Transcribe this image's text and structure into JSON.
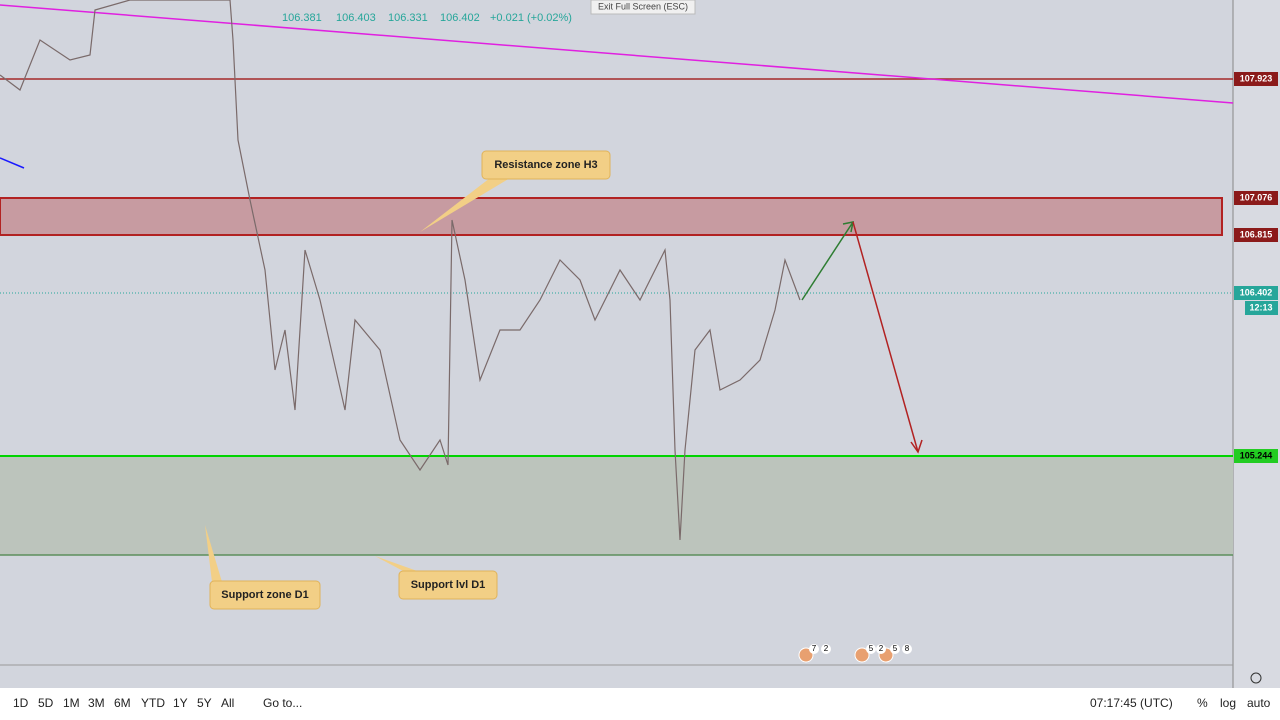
{
  "header": {
    "ohlc": [
      "106.381",
      "106.403",
      "106.331",
      "106.402"
    ],
    "change": "+0.021 (+0.02%)",
    "exit_button": "Exit Full Screen (ESC)"
  },
  "price_labels": {
    "line_top": "107.923",
    "resistance_top": "107.076",
    "resistance_bottom": "106.815",
    "last_price": "106.402",
    "countdown": "12:13",
    "support": "105.244"
  },
  "annotations": {
    "resistance": "Resistance zone H3",
    "support_zone": "Support zone D1",
    "support_level": "Support lvl D1"
  },
  "events": [
    "7",
    "2",
    "5",
    "2",
    "5",
    "8"
  ],
  "toolbar": {
    "ranges": [
      "1D",
      "5D",
      "1M",
      "3M",
      "6M",
      "YTD",
      "1Y",
      "5Y",
      "All"
    ],
    "goto": "Go to...",
    "clock": "07:17:45 (UTC)",
    "percent": "%",
    "log": "log",
    "auto": "auto"
  }
}
